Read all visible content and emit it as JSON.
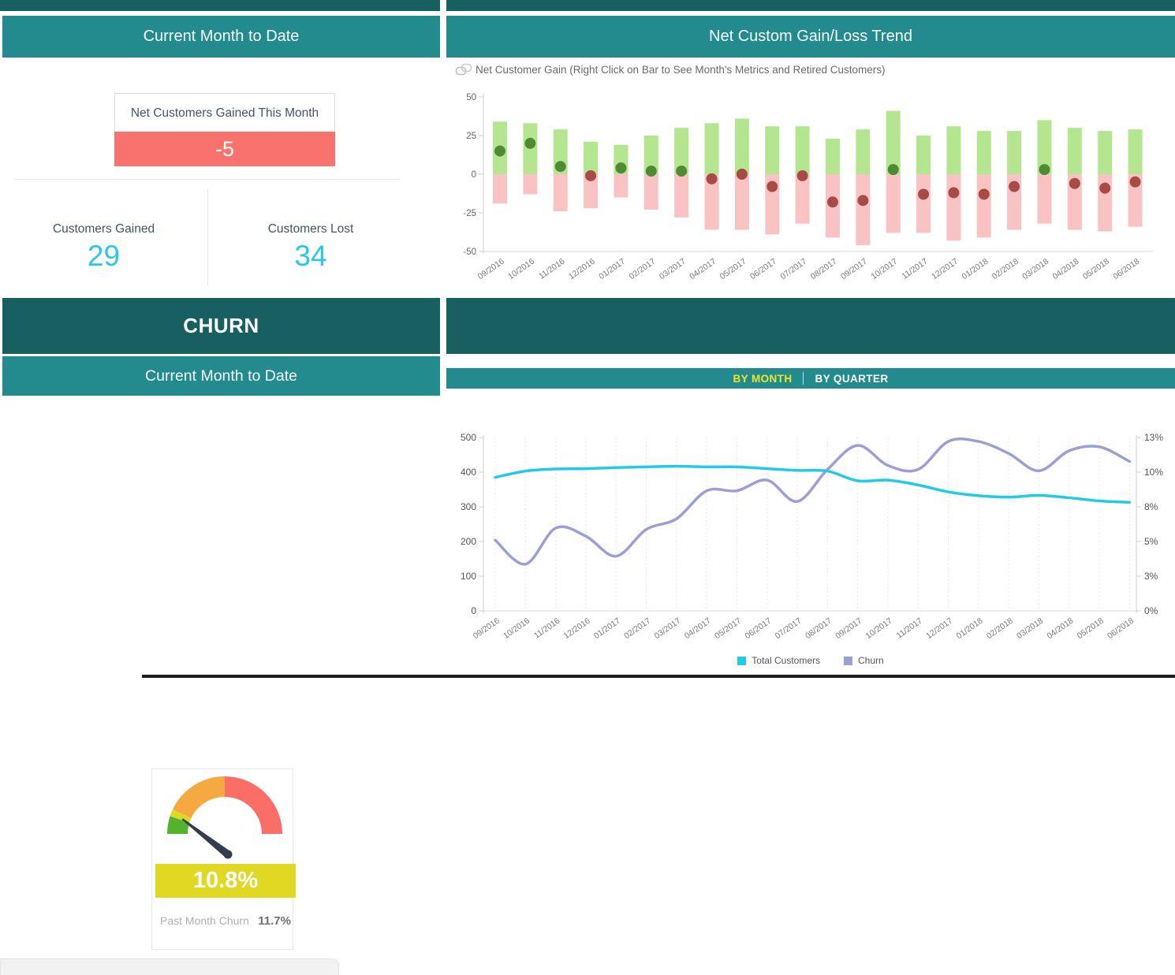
{
  "panels": {
    "gain_summary": {
      "title": "Current Month to Date",
      "card_label": "Net Customers Gained This Month",
      "card_value": "-5",
      "gained_label": "Customers Gained",
      "gained_value": "29",
      "lost_label": "Customers Lost",
      "lost_value": "34"
    },
    "gain_trend": {
      "title": "Net Custom Gain/Loss Trend",
      "subtitle": "Net Customer Gain (Right Click on Bar to See Month's Metrics and Retired Customers)",
      "icon": "link-icon"
    },
    "churn": {
      "title": "CHURN",
      "subtitle": "Current Month to Date",
      "gauge_display": "10.8%",
      "past_label": "Past Month Churn",
      "past_value": "11.7%"
    },
    "trend_panel": {
      "tab_by_month": "BY MONTH",
      "tab_by_quarter": "BY QUARTER"
    }
  },
  "colors": {
    "header_dark_teal": "#185f62",
    "header_teal": "#238b8e",
    "negative_red": "#f8736d",
    "kpi_cyan": "#2bc7e9",
    "bar_green": "#b3e68f",
    "bar_pink": "#f9c3c3",
    "dot_green": "#4e8b33",
    "dot_red": "#a84a45",
    "line_cyan": "#22cbe5",
    "line_purple": "#9b9fd4",
    "tab_yellow": "#efe32b",
    "gauge_band_yellow": "#e0d823"
  },
  "chart_data": [
    {
      "type": "bar",
      "title": "Net Customer Gain (Right Click on Bar to See Month's Metrics and Retired Customers)",
      "categories": [
        "09/2016",
        "10/2016",
        "11/2016",
        "12/2016",
        "01/2017",
        "02/2017",
        "03/2017",
        "04/2017",
        "05/2017",
        "06/2017",
        "07/2017",
        "08/2017",
        "09/2017",
        "10/2017",
        "11/2017",
        "12/2017",
        "01/2018",
        "02/2018",
        "03/2018",
        "04/2018",
        "05/2018",
        "06/2018"
      ],
      "series": [
        {
          "name": "Customers Gained",
          "color": "#b3e68f",
          "values": [
            34,
            33,
            29,
            21,
            19,
            25,
            30,
            33,
            36,
            31,
            31,
            23,
            29,
            41,
            25,
            31,
            28,
            28,
            35,
            30,
            28,
            29
          ]
        },
        {
          "name": "Customers Lost",
          "color": "#f9c3c3",
          "values": [
            -19,
            -13,
            -24,
            -22,
            -15,
            -23,
            -28,
            -36,
            -36,
            -39,
            -32,
            -41,
            -46,
            -38,
            -38,
            -43,
            -41,
            -36,
            -32,
            -36,
            -37,
            -34
          ]
        },
        {
          "name": "Net Customer Gain",
          "type": "point",
          "color_positive": "#4e8b33",
          "color_negative": "#a84a45",
          "values": [
            15,
            20,
            5,
            -1,
            4,
            2,
            2,
            -3,
            0,
            -8,
            -1,
            -18,
            -17,
            3,
            -13,
            -12,
            -13,
            -8,
            3,
            -6,
            -9,
            -5
          ]
        }
      ],
      "ylim": [
        -50,
        50
      ],
      "yticks": [
        50,
        25,
        0,
        -25,
        -50
      ],
      "grid": false
    },
    {
      "type": "line",
      "categories": [
        "09/2016",
        "10/2016",
        "11/2016",
        "12/2016",
        "01/2017",
        "02/2017",
        "03/2017",
        "04/2017",
        "05/2017",
        "06/2017",
        "07/2017",
        "08/2017",
        "09/2017",
        "10/2017",
        "11/2017",
        "12/2017",
        "01/2018",
        "02/2018",
        "03/2018",
        "04/2018",
        "05/2018",
        "06/2018"
      ],
      "series": [
        {
          "name": "Total Customers",
          "color": "#22cbe5",
          "axis": "left",
          "values": [
            385,
            403,
            409,
            410,
            413,
            415,
            417,
            415,
            415,
            410,
            405,
            403,
            375,
            377,
            363,
            343,
            332,
            328,
            333,
            326,
            317,
            313
          ]
        },
        {
          "name": "Churn",
          "color": "#9b9fd4",
          "axis": "right",
          "values": [
            5.3,
            3.5,
            6.2,
            5.6,
            4.1,
            6.1,
            6.9,
            9.0,
            9.0,
            9.8,
            8.2,
            10.6,
            12.4,
            10.9,
            10.6,
            12.7,
            12.7,
            11.8,
            10.5,
            12.0,
            12.3,
            11.2
          ]
        }
      ],
      "ylim_left": [
        0,
        500
      ],
      "yticks_left": [
        500,
        400,
        300,
        200,
        100,
        0
      ],
      "ylim_right": [
        0,
        13
      ],
      "yticks_right": [
        "13%",
        "10%",
        "8%",
        "5%",
        "3%",
        "0%"
      ],
      "grid": true,
      "legend_position": "bottom"
    },
    {
      "type": "gauge",
      "value": 10.8,
      "display": "10.8%",
      "min": 0,
      "max": 100,
      "segments": [
        {
          "from": 0,
          "to": 10,
          "color": "#53b22e"
        },
        {
          "from": 10,
          "to": 14,
          "color": "#ddda21"
        },
        {
          "from": 14,
          "to": 50,
          "color": "#f7a941"
        },
        {
          "from": 50,
          "to": 100,
          "color": "#fa6e67"
        }
      ],
      "needle_color": "#343d4e",
      "past_month_churn": 11.7
    }
  ]
}
